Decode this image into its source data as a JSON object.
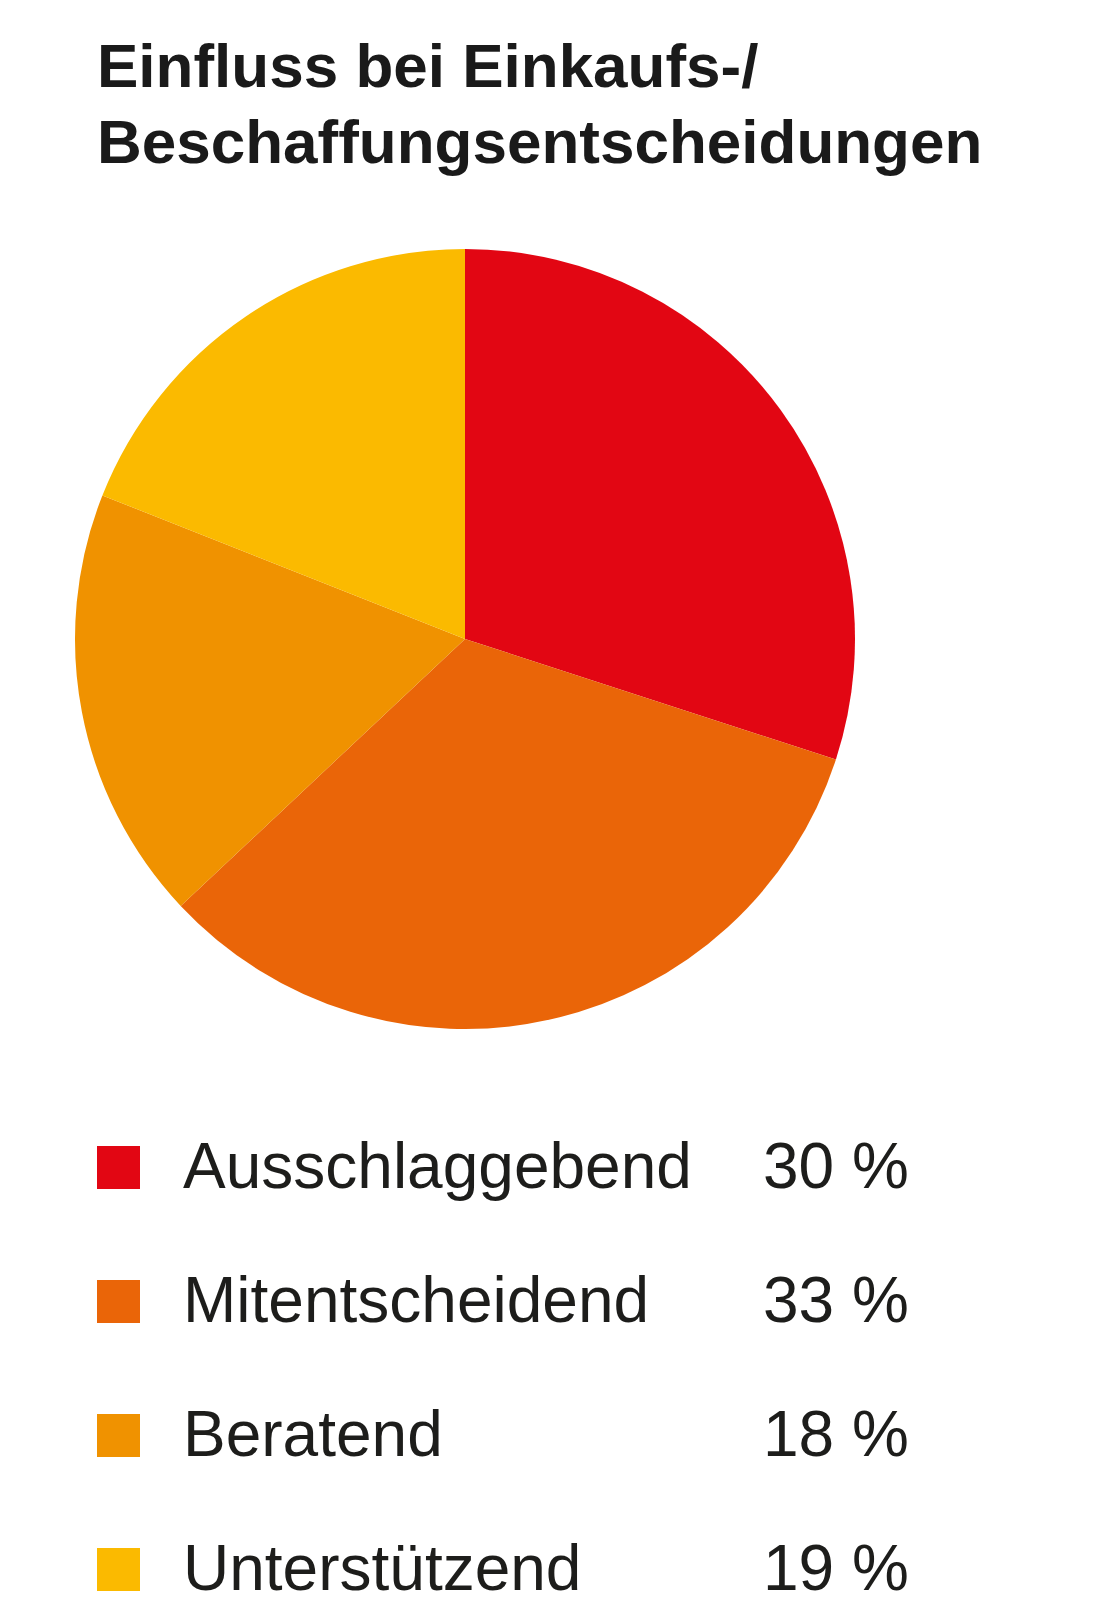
{
  "chart_data": {
    "type": "pie",
    "title": "Einfluss bei Einkaufs-/Beschaffungsentscheidungen",
    "categories": [
      "Ausschlaggebend",
      "Mitentscheidend",
      "Beratend",
      "Unterstützend"
    ],
    "values": [
      30,
      33,
      18,
      19
    ],
    "colors": [
      "#e20613",
      "#ea6508",
      "#f09200",
      "#fbba00"
    ],
    "value_labels": [
      "30 %",
      "33 %",
      "18 %",
      "19 %"
    ],
    "legend": "bottom"
  }
}
